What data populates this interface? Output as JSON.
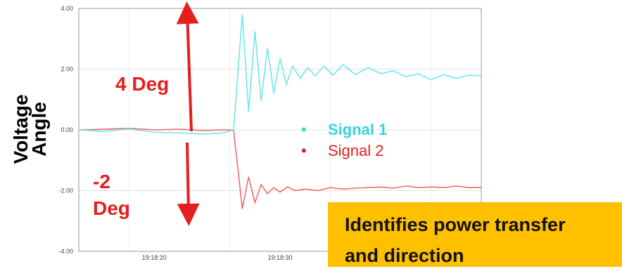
{
  "chart_data": {
    "type": "line",
    "ylabel": "Voltage Angle",
    "ylim": [
      -4,
      4
    ],
    "yticks": [
      "4.00",
      "2.00",
      "0.00",
      "-2.00",
      "-4.00"
    ],
    "ytick_values": [
      4,
      2,
      0,
      -2,
      -4
    ],
    "xticks": [
      "19:18:20",
      "19:18:30"
    ],
    "grid": true,
    "series": [
      {
        "name": "Signal 1",
        "color": "#6fe8ec",
        "points": [
          [
            0,
            0.0
          ],
          [
            2,
            -0.05
          ],
          [
            4,
            0.03
          ],
          [
            6,
            -0.08
          ],
          [
            8,
            -0.1
          ],
          [
            10,
            -0.14
          ],
          [
            11.5,
            -0.1
          ],
          [
            12.3,
            0.0
          ],
          [
            13.0,
            3.8
          ],
          [
            13.5,
            0.6
          ],
          [
            14.0,
            3.25
          ],
          [
            14.5,
            0.95
          ],
          [
            15.0,
            2.7
          ],
          [
            15.5,
            1.2
          ],
          [
            16.0,
            2.35
          ],
          [
            16.5,
            1.5
          ],
          [
            17.0,
            2.1
          ],
          [
            17.6,
            1.7
          ],
          [
            18.2,
            2.05
          ],
          [
            18.8,
            1.78
          ],
          [
            19.5,
            2.1
          ],
          [
            20.2,
            1.8
          ],
          [
            21,
            2.15
          ],
          [
            22,
            1.82
          ],
          [
            23,
            2.05
          ],
          [
            24,
            1.85
          ],
          [
            25,
            1.95
          ],
          [
            26,
            1.75
          ],
          [
            27,
            1.85
          ],
          [
            28,
            1.65
          ],
          [
            29,
            1.82
          ],
          [
            30,
            1.7
          ],
          [
            31,
            1.8
          ],
          [
            32,
            1.78
          ]
        ]
      },
      {
        "name": "Signal 2",
        "color": "#f26a6a",
        "points": [
          [
            0,
            0.0
          ],
          [
            2,
            0.02
          ],
          [
            4,
            0.05
          ],
          [
            6,
            0.0
          ],
          [
            8,
            0.02
          ],
          [
            10,
            -0.02
          ],
          [
            11.5,
            0.0
          ],
          [
            12.3,
            0.0
          ],
          [
            13.0,
            -2.6
          ],
          [
            13.5,
            -1.55
          ],
          [
            14.0,
            -2.4
          ],
          [
            14.5,
            -1.8
          ],
          [
            15.0,
            -2.1
          ],
          [
            15.5,
            -1.9
          ],
          [
            16.0,
            -2.05
          ],
          [
            16.6,
            -1.88
          ],
          [
            17.2,
            -2.0
          ],
          [
            18,
            -1.95
          ],
          [
            19,
            -2.0
          ],
          [
            20,
            -1.9
          ],
          [
            21,
            -1.95
          ],
          [
            22,
            -1.92
          ],
          [
            23,
            -1.9
          ],
          [
            24,
            -1.88
          ],
          [
            25,
            -1.92
          ],
          [
            26,
            -1.85
          ],
          [
            27,
            -1.9
          ],
          [
            28,
            -1.88
          ],
          [
            29,
            -1.9
          ],
          [
            30,
            -1.85
          ],
          [
            31,
            -1.9
          ],
          [
            32,
            -1.9
          ]
        ]
      }
    ],
    "annotations": [
      {
        "text": "4 Deg"
      },
      {
        "text": "-2 Deg"
      }
    ]
  },
  "labels": {
    "ylabel_line1": "Voltage",
    "ylabel_line2": "Angle",
    "anno_up": "4 Deg",
    "anno_down_line1": "-2",
    "anno_down_line2": "Deg",
    "legend_1": "Signal 1",
    "legend_2": "Signal 2",
    "legend_bullet": "•",
    "callout_line1": "Identifies power transfer",
    "callout_line2": "and direction"
  },
  "colors": {
    "signal1": "#6fe8ec",
    "signal2": "#f26a6a",
    "annotation": "#e61e1e",
    "callout_bg": "#ffc000"
  }
}
